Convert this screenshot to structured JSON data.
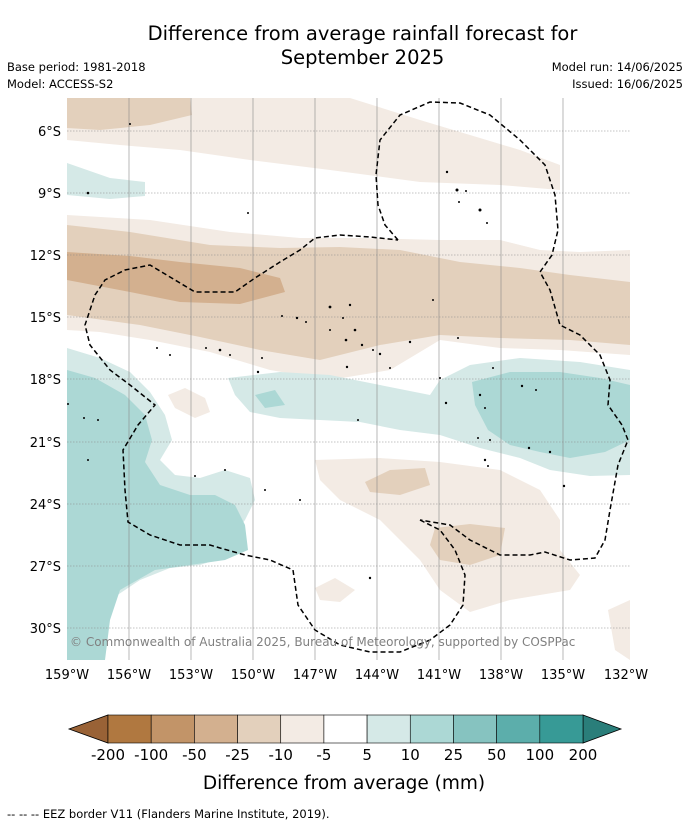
{
  "title_line1": "Difference from average rainfall forecast for",
  "title_line2": "September 2025",
  "base_period": "Base period: 1981-2018",
  "model": "Model: ACCESS-S2",
  "model_run": "Model run: 14/06/2025",
  "issued": "Issued: 16/06/2025",
  "copyright": "© Commonwealth of Australia 2025, Bureau of Meteorology, supported by COSPPac",
  "lat_labels": [
    "6°S",
    "9°S",
    "12°S",
    "15°S",
    "18°S",
    "21°S",
    "24°S",
    "27°S",
    "30°S"
  ],
  "lon_labels": [
    "159°W",
    "156°W",
    "153°W",
    "150°W",
    "147°W",
    "144°W",
    "141°W",
    "138°W",
    "135°W",
    "132°W"
  ],
  "colorbar": {
    "label": "Difference from average (mm)",
    "ticks": [
      "-200",
      "-100",
      "-50",
      "-25",
      "-10",
      "-5",
      "5",
      "10",
      "25",
      "50",
      "100",
      "200"
    ],
    "colors": [
      "#996236",
      "#b07840",
      "#c29468",
      "#d3b08f",
      "#e3d0bc",
      "#f3ebe4",
      "#ffffff",
      "#d5e9e7",
      "#acd8d5",
      "#86c3c0",
      "#5caeab",
      "#379a96",
      "#2a7e7a"
    ]
  },
  "legend_note": "--  --  -- EEZ border V11 (Flanders Marine Institute, 2019)."
}
